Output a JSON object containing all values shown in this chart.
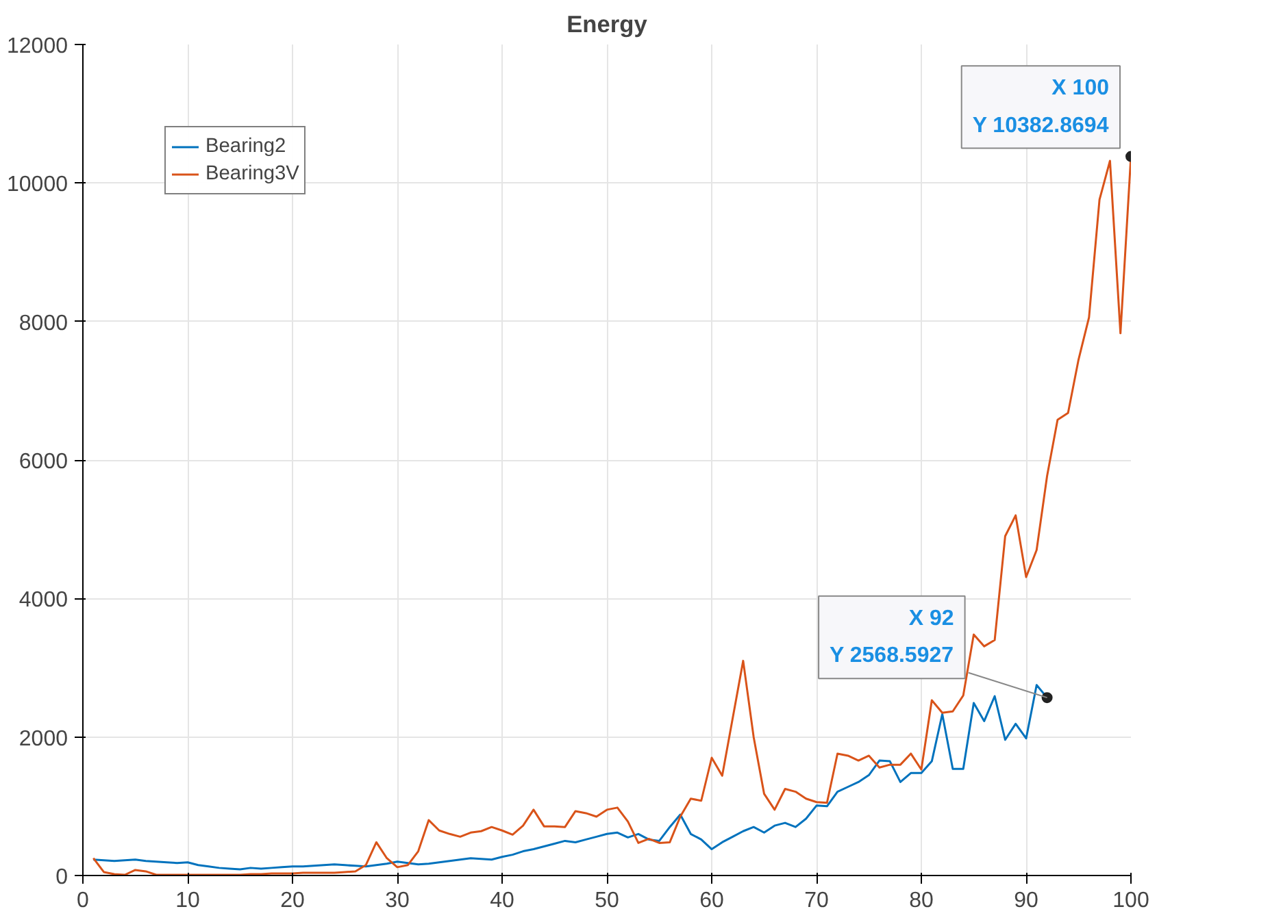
{
  "chart_data": {
    "type": "line",
    "title": "Energy",
    "xlim": [
      0,
      100
    ],
    "ylim": [
      0,
      12000
    ],
    "xticks": [
      0,
      10,
      20,
      30,
      40,
      50,
      60,
      70,
      80,
      90,
      100
    ],
    "yticks": [
      0,
      2000,
      4000,
      6000,
      8000,
      10000,
      12000
    ],
    "grid": true,
    "legend": "top left",
    "line_style": "solid",
    "marker": "none",
    "series": [
      {
        "name": "Bearing2",
        "color": "#0072bd",
        "x": [
          1,
          2,
          3,
          4,
          5,
          6,
          7,
          8,
          9,
          10,
          11,
          12,
          13,
          14,
          15,
          16,
          17,
          18,
          19,
          20,
          21,
          22,
          23,
          24,
          25,
          26,
          27,
          28,
          29,
          30,
          31,
          32,
          33,
          34,
          35,
          36,
          37,
          38,
          39,
          40,
          41,
          42,
          43,
          44,
          45,
          46,
          47,
          48,
          49,
          50,
          51,
          52,
          53,
          54,
          55,
          56,
          57,
          58,
          59,
          60,
          61,
          62,
          63,
          64,
          65,
          66,
          67,
          68,
          69,
          70,
          71,
          72,
          73,
          74,
          75,
          76,
          77,
          78,
          79,
          80,
          81,
          82,
          83,
          84,
          85,
          86,
          87,
          88,
          89,
          90,
          91,
          92
        ],
        "values": [
          230,
          220,
          210,
          220,
          230,
          210,
          200,
          190,
          180,
          190,
          150,
          130,
          110,
          100,
          90,
          110,
          100,
          110,
          120,
          130,
          130,
          140,
          150,
          160,
          150,
          140,
          130,
          150,
          170,
          200,
          180,
          160,
          170,
          190,
          210,
          230,
          250,
          240,
          230,
          270,
          300,
          350,
          380,
          420,
          460,
          500,
          480,
          520,
          560,
          600,
          620,
          550,
          600,
          520,
          500,
          700,
          880,
          600,
          520,
          380,
          480,
          560,
          640,
          700,
          620,
          720,
          760,
          700,
          820,
          1010,
          1000,
          1210,
          1280,
          1350,
          1450,
          1660,
          1650,
          1350,
          1480,
          1480,
          1650,
          2330,
          1540,
          1540,
          2490,
          2230,
          2590,
          1960,
          2190,
          1980,
          2750,
          2568.5927
        ]
      },
      {
        "name": "Bearing3V",
        "color": "#d95319",
        "x": [
          1,
          2,
          3,
          4,
          5,
          6,
          7,
          8,
          9,
          10,
          11,
          12,
          13,
          14,
          15,
          16,
          17,
          18,
          19,
          20,
          21,
          22,
          23,
          24,
          25,
          26,
          27,
          28,
          29,
          30,
          31,
          32,
          33,
          34,
          35,
          36,
          37,
          38,
          39,
          40,
          41,
          42,
          43,
          44,
          45,
          46,
          47,
          48,
          49,
          50,
          51,
          52,
          53,
          54,
          55,
          56,
          57,
          58,
          59,
          60,
          61,
          62,
          63,
          64,
          65,
          66,
          67,
          68,
          69,
          70,
          71,
          72,
          73,
          74,
          75,
          76,
          77,
          78,
          79,
          80,
          81,
          82,
          83,
          84,
          85,
          86,
          87,
          88,
          89,
          90,
          91,
          92,
          93,
          94,
          95,
          96,
          97,
          98,
          99,
          100
        ],
        "values": [
          250,
          50,
          20,
          10,
          80,
          60,
          10,
          10,
          10,
          10,
          10,
          10,
          10,
          10,
          10,
          20,
          20,
          30,
          30,
          30,
          40,
          40,
          40,
          40,
          50,
          60,
          150,
          480,
          250,
          120,
          150,
          350,
          800,
          650,
          600,
          560,
          620,
          640,
          700,
          650,
          590,
          720,
          950,
          710,
          710,
          700,
          930,
          900,
          850,
          950,
          980,
          780,
          470,
          530,
          470,
          480,
          850,
          1110,
          1080,
          1700,
          1440,
          2270,
          3100,
          2000,
          1180,
          950,
          1250,
          1210,
          1110,
          1060,
          1050,
          1760,
          1730,
          1660,
          1730,
          1560,
          1600,
          1600,
          1760,
          1530,
          2530,
          2350,
          2370,
          2600,
          3480,
          3310,
          3400,
          4900,
          5200,
          4310,
          4700,
          5770,
          6580,
          6680,
          7450,
          8060,
          9760,
          10320,
          7830,
          10382.8694
        ]
      }
    ],
    "annotations": [
      {
        "text": "X 100\nY 10382.8694",
        "x": 100,
        "y": 10382.8694
      },
      {
        "text": "X 92\nY 2568.5927",
        "x": 92,
        "y": 2568.5927
      }
    ]
  }
}
